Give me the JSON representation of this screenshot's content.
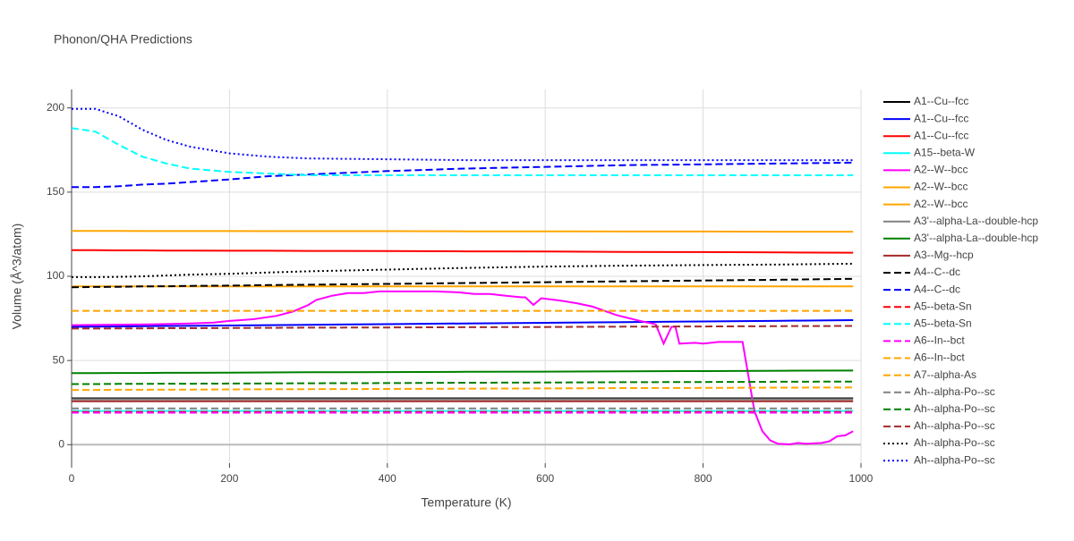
{
  "chart_data": {
    "type": "line",
    "title": "Phonon/QHA Predictions",
    "x_label": "Temperature (K)",
    "y_label": "Volume (Å^3/atom)",
    "xlim": [
      0,
      1000
    ],
    "xticks": [
      0,
      200,
      400,
      600,
      800,
      1000
    ],
    "ylim": [
      -11,
      211
    ],
    "yticks": [
      0,
      50,
      100,
      150,
      200
    ],
    "grid": true,
    "legend_position": "right",
    "x": [
      0,
      30,
      60,
      90,
      120,
      150,
      200,
      250,
      300,
      400,
      500,
      600,
      700,
      800,
      900,
      990
    ],
    "series": [
      {
        "name": "A1--Cu--fcc",
        "color": "#000000",
        "dash": "solid",
        "values": [
          27.5,
          27.5,
          27.5,
          27.5,
          27.5,
          27.5,
          27.5,
          27.5,
          27.5,
          27.5,
          27.5,
          27.5,
          27.5,
          27.5,
          27.5,
          27.5
        ]
      },
      {
        "name": "A1--Cu--fcc",
        "color": "#0000ff",
        "dash": "solid",
        "values": [
          70,
          70.1,
          70.2,
          70.4,
          70.5,
          70.6,
          70.8,
          71,
          71.2,
          71.6,
          72,
          72.4,
          72.8,
          73.2,
          73.6,
          74
        ]
      },
      {
        "name": "A1--Cu--fcc",
        "color": "#ff0000",
        "dash": "solid",
        "values": [
          115.5,
          115.5,
          115.4,
          115.4,
          115.3,
          115.3,
          115.2,
          115.2,
          115.1,
          115,
          114.8,
          114.7,
          114.5,
          114.4,
          114.2,
          114
        ]
      },
      {
        "name": "A15--beta-W",
        "color": "#00ffff",
        "dash": "solid",
        "values": [
          20,
          20,
          20,
          20,
          20,
          20,
          20,
          20,
          20,
          20,
          20,
          20,
          20,
          20,
          20,
          20
        ]
      },
      {
        "name": "A2--W--bcc",
        "color": "#ff00ff",
        "dash": "solid",
        "x": [
          0,
          100,
          150,
          180,
          200,
          230,
          260,
          280,
          300,
          310,
          330,
          350,
          370,
          390,
          420,
          460,
          490,
          510,
          530,
          550,
          570,
          575,
          585,
          595,
          620,
          640,
          660,
          690,
          720,
          740,
          750,
          760,
          765,
          770,
          790,
          800,
          820,
          850,
          865,
          875,
          885,
          895,
          910,
          920,
          930,
          950,
          960,
          970,
          980,
          990
        ],
        "values": [
          71,
          71.5,
          72,
          72.5,
          73.5,
          74.5,
          76.5,
          79,
          83,
          86,
          88.5,
          90,
          90,
          91,
          91,
          91,
          90.5,
          89.5,
          89.5,
          88.5,
          87.5,
          87.5,
          83,
          87,
          85.5,
          84,
          82,
          77,
          73.5,
          71.5,
          60,
          70,
          70,
          60,
          60.5,
          60,
          61,
          61,
          20,
          8,
          2.5,
          0.5,
          0.2,
          1,
          0.5,
          1,
          2,
          5,
          5.5,
          8
        ]
      },
      {
        "name": "A2--W--bcc",
        "color": "#ffa500",
        "dash": "solid",
        "values": [
          127,
          127,
          127,
          126.9,
          126.9,
          126.9,
          126.9,
          126.8,
          126.8,
          126.8,
          126.7,
          126.7,
          126.6,
          126.6,
          126.5,
          126.5
        ]
      },
      {
        "name": "A2--W--bcc",
        "color": "#ffa500",
        "dash": "solid",
        "values": [
          94,
          94,
          94,
          94,
          94,
          94,
          94,
          94,
          94,
          94,
          94,
          94,
          94,
          94,
          94,
          94
        ]
      },
      {
        "name": "A3'--alpha-La--double-hcp",
        "color": "#808080",
        "dash": "solid",
        "values": [
          27,
          27,
          27,
          27,
          27,
          27,
          27,
          27,
          27,
          27,
          27,
          27,
          27,
          27,
          27,
          27
        ]
      },
      {
        "name": "A3'--alpha-La--double-hcp",
        "color": "#008000",
        "dash": "solid",
        "values": [
          42.5,
          42.5,
          42.6,
          42.6,
          42.7,
          42.7,
          42.8,
          42.9,
          43,
          43.1,
          43.3,
          43.4,
          43.6,
          43.7,
          43.9,
          44
        ]
      },
      {
        "name": "A3--Mg--hcp",
        "color": "#a52a2a",
        "dash": "solid",
        "values": [
          25.8,
          25.8,
          25.8,
          25.8,
          25.8,
          25.8,
          25.8,
          25.8,
          25.8,
          25.8,
          25.8,
          25.8,
          25.8,
          25.8,
          25.8,
          25.8
        ]
      },
      {
        "name": "A4--C--dc",
        "color": "#000000",
        "dash": "dash",
        "values": [
          93.5,
          93.7,
          93.8,
          94,
          94.1,
          94.3,
          94.5,
          94.8,
          95,
          95.5,
          96,
          96.5,
          97,
          97.5,
          98,
          98.5
        ]
      },
      {
        "name": "A4--C--dc",
        "color": "#0000ff",
        "dash": "dash",
        "values": [
          153,
          153,
          153.5,
          154.5,
          155,
          156,
          157.5,
          159.5,
          160.5,
          162.5,
          164,
          165,
          166,
          166.5,
          167,
          167.5
        ]
      },
      {
        "name": "A5--beta-Sn",
        "color": "#ff0000",
        "dash": "dash",
        "values": [
          19.5,
          19.5,
          19.5,
          19.5,
          19.5,
          19.5,
          19.5,
          19.5,
          19.5,
          19.5,
          19.5,
          19.5,
          19.5,
          19.5,
          19.5,
          19.5
        ]
      },
      {
        "name": "A5--beta-Sn",
        "color": "#00ffff",
        "dash": "dash",
        "values": [
          188,
          186,
          178,
          171,
          167,
          164,
          162,
          161,
          160,
          160,
          160,
          160,
          160,
          160,
          160,
          160
        ]
      },
      {
        "name": "A6--In--bct",
        "color": "#ff00ff",
        "dash": "dash",
        "values": [
          19,
          19,
          19,
          19,
          19,
          19,
          19,
          19,
          19,
          19,
          19,
          19,
          19,
          19,
          19,
          19
        ]
      },
      {
        "name": "A6--In--bct",
        "color": "#ffa500",
        "dash": "dash",
        "values": [
          79.5,
          79.5,
          79.5,
          79.5,
          79.5,
          79.5,
          79.5,
          79.5,
          79.5,
          79.5,
          79.5,
          79.5,
          79.5,
          79.5,
          79.5,
          79.5
        ]
      },
      {
        "name": "A7--alpha-As",
        "color": "#ffa500",
        "dash": "dash",
        "values": [
          32.5,
          32.5,
          32.6,
          32.6,
          32.7,
          32.7,
          32.8,
          32.9,
          33,
          33.1,
          33.3,
          33.4,
          33.6,
          33.7,
          33.9,
          34
        ]
      },
      {
        "name": "Ah--alpha-Po--sc",
        "color": "#808080",
        "dash": "dash",
        "values": [
          21.5,
          21.5,
          21.5,
          21.5,
          21.5,
          21.5,
          21.5,
          21.5,
          21.5,
          21.5,
          21.5,
          21.5,
          21.5,
          21.5,
          21.5,
          21.5
        ]
      },
      {
        "name": "Ah--alpha-Po--sc",
        "color": "#008000",
        "dash": "dash",
        "values": [
          36,
          36,
          36.1,
          36.1,
          36.2,
          36.2,
          36.3,
          36.4,
          36.5,
          36.6,
          36.8,
          36.9,
          37.1,
          37.2,
          37.4,
          37.5
        ]
      },
      {
        "name": "Ah--alpha-Po--sc",
        "color": "#a52a2a",
        "dash": "dash",
        "values": [
          69,
          69,
          69.1,
          69.1,
          69.2,
          69.2,
          69.3,
          69.4,
          69.5,
          69.6,
          69.8,
          69.9,
          70.1,
          70.2,
          70.4,
          70.5
        ]
      },
      {
        "name": "Ah--alpha-Po--sc",
        "color": "#000000",
        "dash": "dot",
        "values": [
          99.5,
          99.5,
          99.7,
          100,
          100.5,
          101,
          101.5,
          102.3,
          103,
          104,
          105,
          105.8,
          106.3,
          106.7,
          107,
          107.5
        ]
      },
      {
        "name": "Ah--alpha-Po--sc",
        "color": "#0000ff",
        "dash": "dot",
        "values": [
          199.5,
          199.5,
          195,
          187,
          181,
          177,
          173,
          171,
          170,
          169.5,
          169,
          169,
          169,
          169,
          169,
          169
        ]
      }
    ]
  }
}
